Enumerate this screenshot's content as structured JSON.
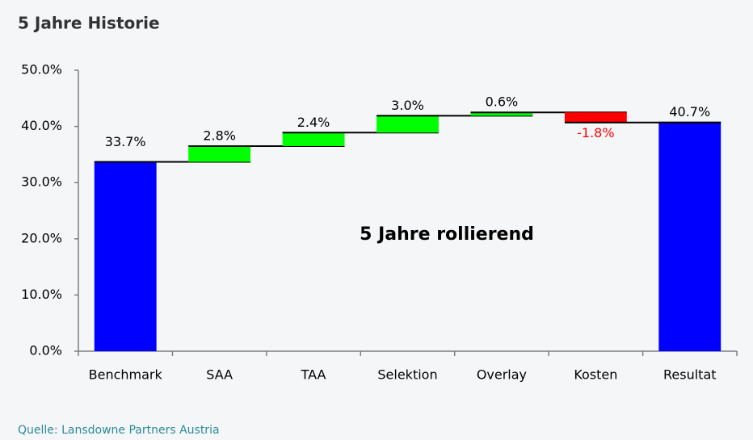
{
  "chart_data": {
    "type": "waterfall",
    "title": "5 Jahre Historie",
    "annotation": "5 Jahre rollierend",
    "source": "Quelle: Lansdowne Partners Austria",
    "categories": [
      "Benchmark",
      "SAA",
      "TAA",
      "Selektion",
      "Overlay",
      "Kosten",
      "Resultat"
    ],
    "values": [
      33.7,
      2.8,
      2.4,
      3.0,
      0.6,
      -1.8,
      40.7
    ],
    "value_labels": [
      "33.7%",
      "2.8%",
      "2.4%",
      "3.0%",
      "0.6%",
      "-1.8%",
      "40.7%"
    ],
    "total_color": "#0000ff",
    "increase_color": "#00ff00",
    "decrease_color": "#ff0000",
    "ylim": [
      0,
      50
    ],
    "yticks": [
      {
        "value": 0,
        "label": "0.0%"
      },
      {
        "value": 10,
        "label": "10.0%"
      },
      {
        "value": 20,
        "label": "20.0%"
      },
      {
        "value": 30,
        "label": "30.0%"
      },
      {
        "value": 40,
        "label": "40.0%"
      },
      {
        "value": 50,
        "label": "50.0%"
      }
    ],
    "grid": false
  }
}
